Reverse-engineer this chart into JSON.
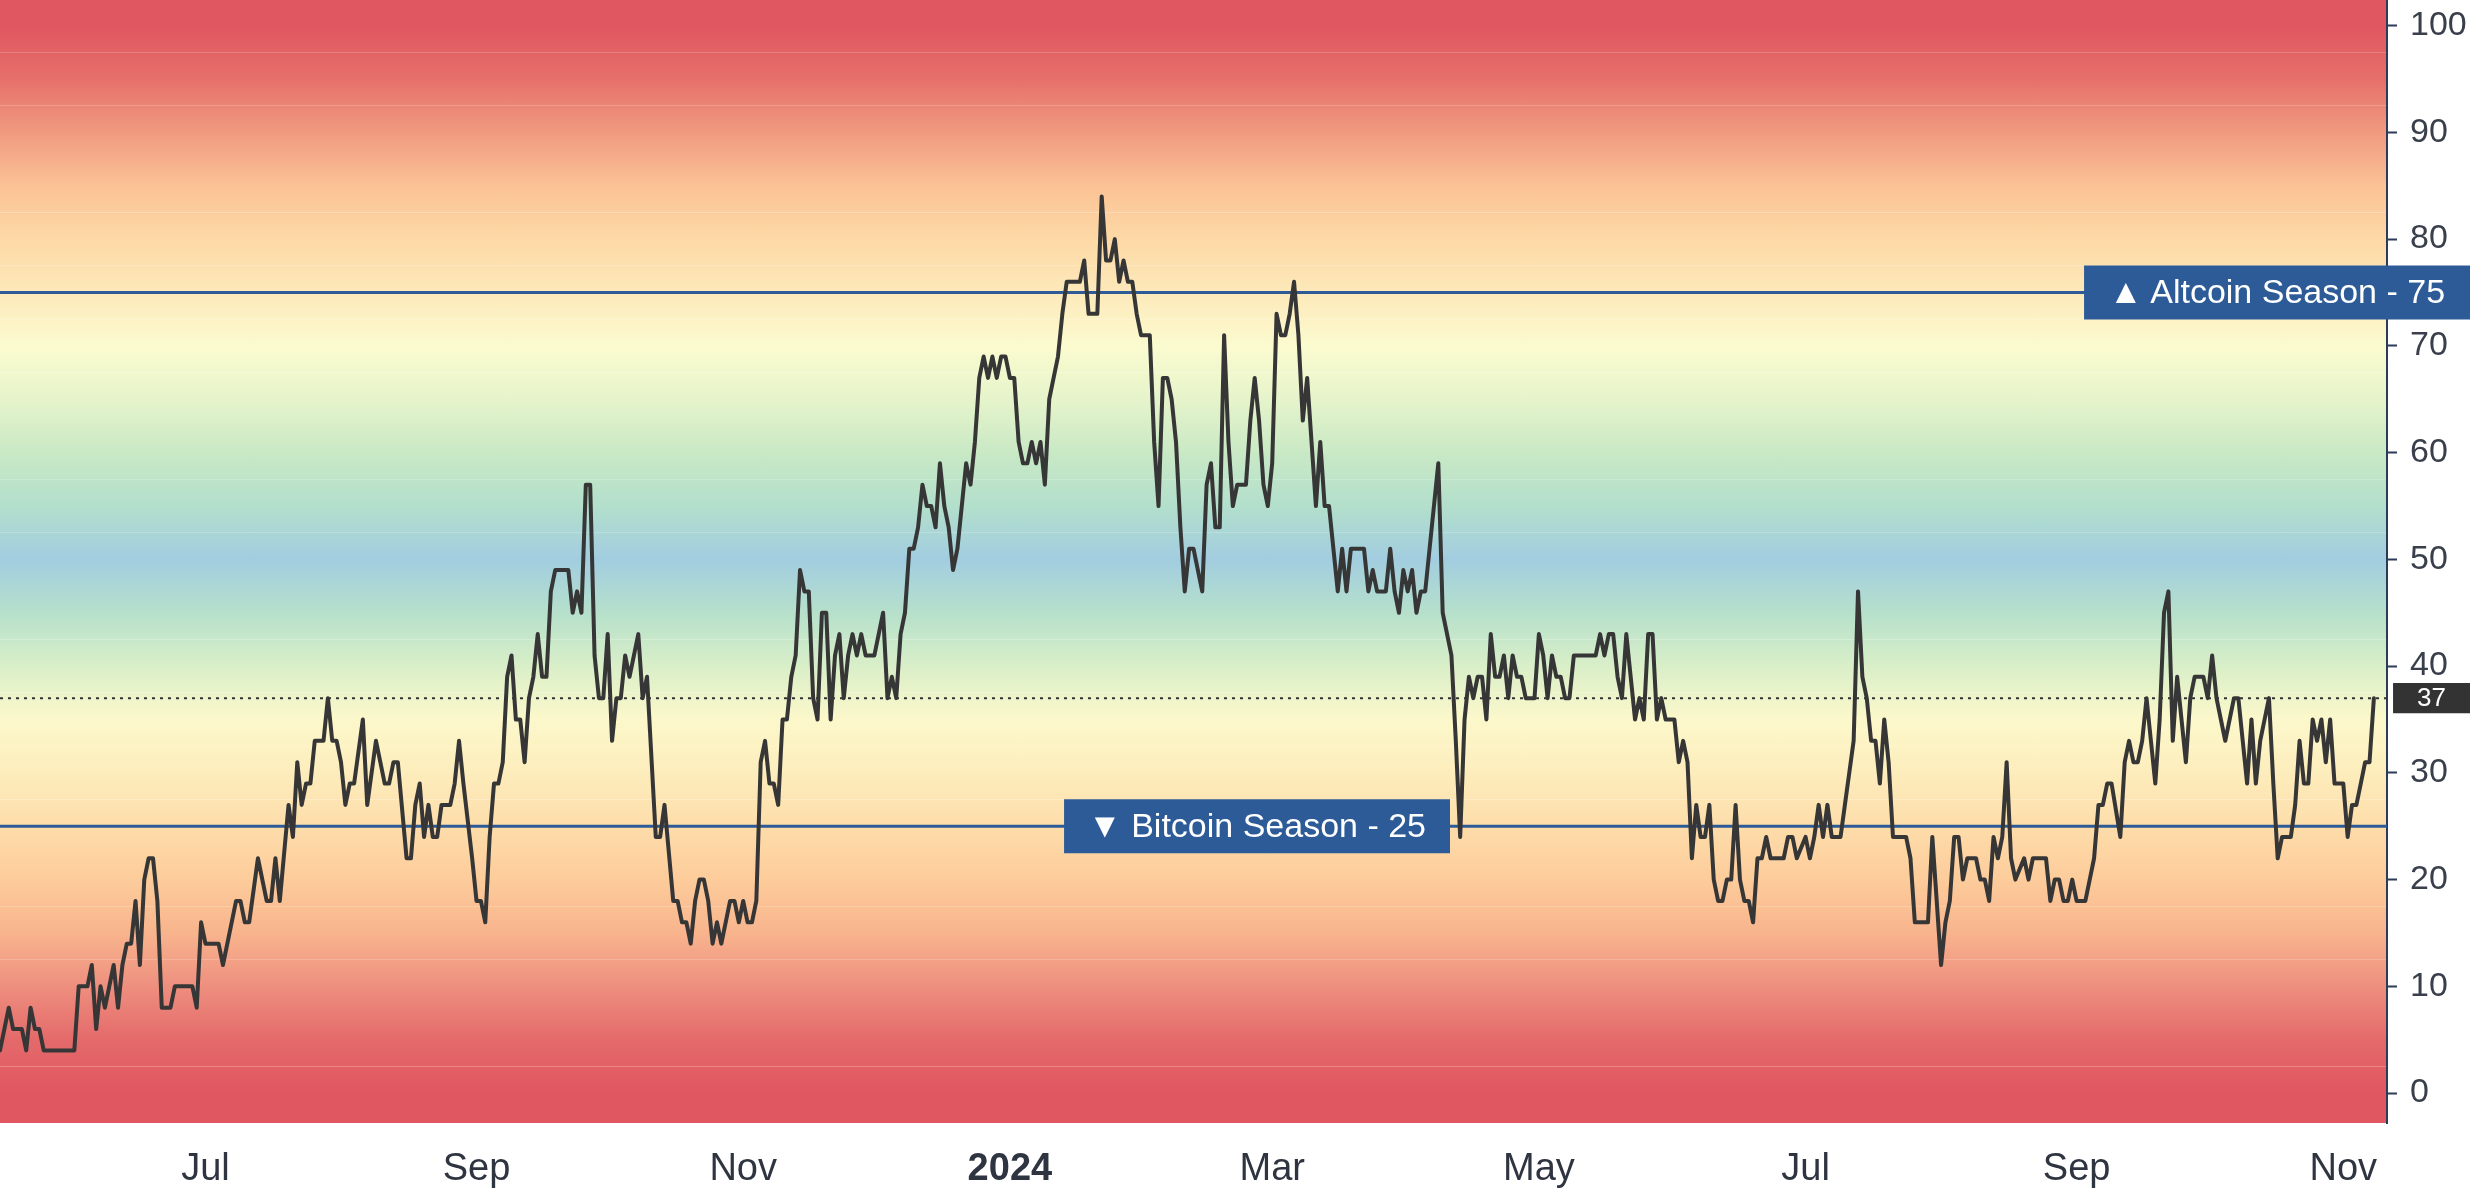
{
  "chart_data": {
    "type": "line",
    "x": [
      "2023-05-15",
      "2023-05-17",
      "2023-05-18",
      "2023-05-20",
      "2023-05-21",
      "2023-05-22",
      "2023-05-23",
      "2023-05-24",
      "2023-05-25",
      "2023-06-01",
      "2023-06-02",
      "2023-06-04",
      "2023-06-05",
      "2023-06-06",
      "2023-06-07",
      "2023-06-08",
      "2023-06-10",
      "2023-06-11",
      "2023-06-12",
      "2023-06-13",
      "2023-06-14",
      "2023-06-15",
      "2023-06-16",
      "2023-06-17",
      "2023-06-18",
      "2023-06-19",
      "2023-06-20",
      "2023-06-21",
      "2023-06-23",
      "2023-06-24",
      "2023-06-28",
      "2023-06-29",
      "2023-06-30",
      "2023-07-01",
      "2023-07-04",
      "2023-07-05",
      "2023-07-08",
      "2023-07-09",
      "2023-07-10",
      "2023-07-11",
      "2023-07-13",
      "2023-07-15",
      "2023-07-16",
      "2023-07-17",
      "2023-07-18",
      "2023-07-20",
      "2023-07-21",
      "2023-07-22",
      "2023-07-23",
      "2023-07-24",
      "2023-07-25",
      "2023-07-26",
      "2023-07-28",
      "2023-07-29",
      "2023-07-30",
      "2023-07-31",
      "2023-08-01",
      "2023-08-02",
      "2023-08-03",
      "2023-08-04",
      "2023-08-06",
      "2023-08-07",
      "2023-08-09",
      "2023-08-11",
      "2023-08-12",
      "2023-08-13",
      "2023-08-14",
      "2023-08-16",
      "2023-08-17",
      "2023-08-18",
      "2023-08-19",
      "2023-08-20",
      "2023-08-21",
      "2023-08-22",
      "2023-08-23",
      "2023-08-24",
      "2023-08-26",
      "2023-08-27",
      "2023-08-28",
      "2023-08-29",
      "2023-08-31",
      "2023-09-01",
      "2023-09-02",
      "2023-09-03",
      "2023-09-04",
      "2023-09-05",
      "2023-09-06",
      "2023-09-07",
      "2023-09-08",
      "2023-09-09",
      "2023-09-10",
      "2023-09-11",
      "2023-09-12",
      "2023-09-13",
      "2023-09-14",
      "2023-09-15",
      "2023-09-16",
      "2023-09-17",
      "2023-09-18",
      "2023-09-19",
      "2023-09-22",
      "2023-09-23",
      "2023-09-24",
      "2023-09-25",
      "2023-09-26",
      "2023-09-27",
      "2023-09-28",
      "2023-09-29",
      "2023-09-30",
      "2023-10-01",
      "2023-10-02",
      "2023-10-03",
      "2023-10-04",
      "2023-10-05",
      "2023-10-06",
      "2023-10-08",
      "2023-10-09",
      "2023-10-10",
      "2023-10-12",
      "2023-10-13",
      "2023-10-14",
      "2023-10-16",
      "2023-10-17",
      "2023-10-18",
      "2023-10-19",
      "2023-10-20",
      "2023-10-21",
      "2023-10-22",
      "2023-10-23",
      "2023-10-24",
      "2023-10-25",
      "2023-10-26",
      "2023-10-27",
      "2023-10-29",
      "2023-10-30",
      "2023-10-31",
      "2023-11-01",
      "2023-11-02",
      "2023-11-03",
      "2023-11-04",
      "2023-11-05",
      "2023-11-06",
      "2023-11-07",
      "2023-11-08",
      "2023-11-09",
      "2023-11-10",
      "2023-11-11",
      "2023-11-12",
      "2023-11-13",
      "2023-11-14",
      "2023-11-15",
      "2023-11-16",
      "2023-11-17",
      "2023-11-18",
      "2023-11-19",
      "2023-11-20",
      "2023-11-21",
      "2023-11-22",
      "2023-11-23",
      "2023-11-24",
      "2023-11-25",
      "2023-11-26",
      "2023-11-27",
      "2023-11-28",
      "2023-11-29",
      "2023-12-01",
      "2023-12-03",
      "2023-12-04",
      "2023-12-05",
      "2023-12-06",
      "2023-12-07",
      "2023-12-08",
      "2023-12-09",
      "2023-12-10",
      "2023-12-11",
      "2023-12-12",
      "2023-12-13",
      "2023-12-14",
      "2023-12-15",
      "2023-12-16",
      "2023-12-17",
      "2023-12-18",
      "2023-12-19",
      "2023-12-20",
      "2023-12-22",
      "2023-12-23",
      "2023-12-24",
      "2023-12-25",
      "2023-12-26",
      "2023-12-27",
      "2023-12-28",
      "2023-12-29",
      "2023-12-30",
      "2023-12-31",
      "2024-01-01",
      "2024-01-02",
      "2024-01-03",
      "2024-01-04",
      "2024-01-05",
      "2024-01-06",
      "2024-01-07",
      "2024-01-08",
      "2024-01-09",
      "2024-01-10",
      "2024-01-11",
      "2024-01-12",
      "2024-01-13",
      "2024-01-14",
      "2024-01-17",
      "2024-01-18",
      "2024-01-19",
      "2024-01-21",
      "2024-01-22",
      "2024-01-23",
      "2024-01-24",
      "2024-01-25",
      "2024-01-26",
      "2024-01-27",
      "2024-01-28",
      "2024-01-29",
      "2024-01-30",
      "2024-01-31",
      "2024-02-02",
      "2024-02-03",
      "2024-02-04",
      "2024-02-05",
      "2024-02-06",
      "2024-02-07",
      "2024-02-08",
      "2024-02-09",
      "2024-02-10",
      "2024-02-11",
      "2024-02-12",
      "2024-02-13",
      "2024-02-14",
      "2024-02-15",
      "2024-02-16",
      "2024-02-17",
      "2024-02-18",
      "2024-02-19",
      "2024-02-20",
      "2024-02-21",
      "2024-02-22",
      "2024-02-24",
      "2024-02-25",
      "2024-02-26",
      "2024-02-27",
      "2024-02-28",
      "2024-02-29",
      "2024-03-01",
      "2024-03-02",
      "2024-03-03",
      "2024-03-04",
      "2024-03-05",
      "2024-03-06",
      "2024-03-07",
      "2024-03-08",
      "2024-03-09",
      "2024-03-10",
      "2024-03-11",
      "2024-03-12",
      "2024-03-13",
      "2024-03-14",
      "2024-03-15",
      "2024-03-16",
      "2024-03-17",
      "2024-03-18",
      "2024-03-19",
      "2024-03-22",
      "2024-03-23",
      "2024-03-24",
      "2024-03-25",
      "2024-03-27",
      "2024-03-28",
      "2024-03-29",
      "2024-03-30",
      "2024-03-31",
      "2024-04-01",
      "2024-04-02",
      "2024-04-03",
      "2024-04-04",
      "2024-04-05",
      "2024-04-07",
      "2024-04-08",
      "2024-04-09",
      "2024-04-11",
      "2024-04-12",
      "2024-04-13",
      "2024-04-14",
      "2024-04-15",
      "2024-04-16",
      "2024-04-17",
      "2024-04-18",
      "2024-04-19",
      "2024-04-20",
      "2024-04-21",
      "2024-04-22",
      "2024-04-23",
      "2024-04-24",
      "2024-04-25",
      "2024-04-26",
      "2024-04-27",
      "2024-04-28",
      "2024-04-30",
      "2024-05-01",
      "2024-05-02",
      "2024-05-03",
      "2024-05-04",
      "2024-05-05",
      "2024-05-06",
      "2024-05-07",
      "2024-05-08",
      "2024-05-09",
      "2024-05-14",
      "2024-05-15",
      "2024-05-16",
      "2024-05-17",
      "2024-05-18",
      "2024-05-19",
      "2024-05-20",
      "2024-05-21",
      "2024-05-22",
      "2024-05-23",
      "2024-05-24",
      "2024-05-25",
      "2024-05-26",
      "2024-05-27",
      "2024-05-28",
      "2024-05-29",
      "2024-05-30",
      "2024-06-01",
      "2024-06-02",
      "2024-06-03",
      "2024-06-04",
      "2024-06-05",
      "2024-06-06",
      "2024-06-07",
      "2024-06-08",
      "2024-06-09",
      "2024-06-10",
      "2024-06-11",
      "2024-06-12",
      "2024-06-13",
      "2024-06-14",
      "2024-06-15",
      "2024-06-16",
      "2024-06-17",
      "2024-06-18",
      "2024-06-19",
      "2024-06-20",
      "2024-06-21",
      "2024-06-22",
      "2024-06-23",
      "2024-06-26",
      "2024-06-27",
      "2024-06-28",
      "2024-06-29",
      "2024-07-01",
      "2024-07-02",
      "2024-07-03",
      "2024-07-04",
      "2024-07-05",
      "2024-07-06",
      "2024-07-07",
      "2024-07-09",
      "2024-07-10",
      "2024-07-12",
      "2024-07-13",
      "2024-07-14",
      "2024-07-15",
      "2024-07-16",
      "2024-07-17",
      "2024-07-18",
      "2024-07-19",
      "2024-07-20",
      "2024-07-21",
      "2024-07-24",
      "2024-07-25",
      "2024-07-26",
      "2024-07-29",
      "2024-07-30",
      "2024-08-01",
      "2024-08-02",
      "2024-08-03",
      "2024-08-04",
      "2024-08-05",
      "2024-08-06",
      "2024-08-07",
      "2024-08-09",
      "2024-08-10",
      "2024-08-11",
      "2024-08-12",
      "2024-08-13",
      "2024-08-14",
      "2024-08-15",
      "2024-08-16",
      "2024-08-17",
      "2024-08-18",
      "2024-08-20",
      "2024-08-21",
      "2024-08-22",
      "2024-08-25",
      "2024-08-26",
      "2024-08-27",
      "2024-08-28",
      "2024-08-29",
      "2024-08-30",
      "2024-08-31",
      "2024-09-01",
      "2024-09-03",
      "2024-09-04",
      "2024-09-05",
      "2024-09-06",
      "2024-09-07",
      "2024-09-08",
      "2024-09-09",
      "2024-09-11",
      "2024-09-12",
      "2024-09-13",
      "2024-09-14",
      "2024-09-15",
      "2024-09-16",
      "2024-09-17",
      "2024-09-18",
      "2024-09-19",
      "2024-09-20",
      "2024-09-21",
      "2024-09-22",
      "2024-09-23",
      "2024-09-24",
      "2024-09-25",
      "2024-09-26",
      "2024-09-27",
      "2024-09-28",
      "2024-09-30",
      "2024-10-01",
      "2024-10-02",
      "2024-10-03",
      "2024-10-04",
      "2024-10-05",
      "2024-10-06",
      "2024-10-07",
      "2024-10-08",
      "2024-10-09",
      "2024-10-10",
      "2024-10-11",
      "2024-10-12",
      "2024-10-13",
      "2024-10-15",
      "2024-10-16",
      "2024-10-17",
      "2024-10-18",
      "2024-10-20",
      "2024-10-21",
      "2024-10-22",
      "2024-10-23",
      "2024-10-24",
      "2024-10-25",
      "2024-10-26",
      "2024-10-27",
      "2024-10-28",
      "2024-10-29",
      "2024-10-30",
      "2024-11-01",
      "2024-11-02",
      "2024-11-03",
      "2024-11-04",
      "2024-11-05",
      "2024-11-06",
      "2024-11-07",
      "2024-11-08"
    ],
    "series": [
      {
        "color": "#363636",
        "values": [
          4,
          8,
          6,
          6,
          4,
          8,
          6,
          6,
          4,
          4,
          10,
          10,
          12,
          6,
          10,
          8,
          12,
          8,
          12,
          14,
          14,
          18,
          12,
          20,
          22,
          22,
          18,
          8,
          8,
          10,
          10,
          8,
          16,
          14,
          14,
          12,
          18,
          18,
          16,
          16,
          22,
          18,
          18,
          22,
          18,
          27,
          24,
          31,
          27,
          29,
          29,
          33,
          33,
          37,
          33,
          33,
          31,
          27,
          29,
          29,
          35,
          27,
          33,
          29,
          29,
          31,
          31,
          22,
          22,
          27,
          29,
          24,
          27,
          24,
          24,
          27,
          27,
          29,
          33,
          29,
          22,
          18,
          18,
          16,
          24,
          29,
          29,
          31,
          39,
          41,
          35,
          35,
          31,
          37,
          39,
          43,
          39,
          39,
          47,
          49,
          49,
          45,
          47,
          45,
          57,
          57,
          41,
          37,
          37,
          43,
          33,
          37,
          37,
          41,
          39,
          43,
          37,
          39,
          24,
          24,
          27,
          18,
          18,
          16,
          16,
          14,
          18,
          20,
          20,
          18,
          14,
          16,
          14,
          18,
          18,
          16,
          18,
          16,
          16,
          18,
          31,
          33,
          29,
          29,
          27,
          35,
          35,
          39,
          41,
          49,
          47,
          47,
          37,
          35,
          45,
          45,
          35,
          41,
          43,
          37,
          41,
          43,
          41,
          43,
          41,
          41,
          45,
          37,
          39,
          37,
          43,
          45,
          51,
          51,
          53,
          57,
          55,
          55,
          53,
          59,
          55,
          53,
          49,
          51,
          59,
          57,
          61,
          67,
          69,
          67,
          69,
          67,
          69,
          69,
          67,
          67,
          61,
          59,
          59,
          61,
          59,
          61,
          57,
          65,
          67,
          69,
          73,
          76,
          76,
          78,
          73,
          73,
          84,
          78,
          78,
          80,
          76,
          78,
          76,
          76,
          73,
          71,
          71,
          61,
          55,
          67,
          67,
          65,
          61,
          53,
          47,
          51,
          51,
          49,
          47,
          57,
          59,
          53,
          53,
          71,
          61,
          55,
          57,
          57,
          63,
          67,
          63,
          57,
          55,
          59,
          73,
          71,
          71,
          73,
          76,
          71,
          63,
          67,
          61,
          55,
          61,
          55,
          55,
          51,
          47,
          51,
          47,
          51,
          51,
          47,
          49,
          47,
          47,
          51,
          47,
          45,
          49,
          47,
          49,
          45,
          47,
          47,
          55,
          59,
          45,
          41,
          33,
          24,
          35,
          39,
          37,
          39,
          39,
          35,
          43,
          39,
          39,
          41,
          37,
          41,
          39,
          39,
          37,
          37,
          43,
          41,
          37,
          41,
          39,
          39,
          37,
          37,
          41,
          41,
          43,
          41,
          43,
          43,
          39,
          37,
          43,
          39,
          35,
          37,
          35,
          43,
          43,
          35,
          37,
          35,
          35,
          31,
          33,
          31,
          22,
          27,
          24,
          24,
          27,
          20,
          18,
          18,
          20,
          20,
          27,
          20,
          18,
          18,
          16,
          22,
          22,
          24,
          22,
          22,
          24,
          24,
          22,
          24,
          22,
          24,
          27,
          24,
          27,
          24,
          24,
          27,
          33,
          47,
          39,
          37,
          33,
          33,
          29,
          35,
          31,
          24,
          24,
          22,
          16,
          16,
          24,
          12,
          16,
          18,
          24,
          24,
          20,
          22,
          22,
          20,
          20,
          18,
          24,
          22,
          24,
          31,
          22,
          20,
          22,
          20,
          22,
          22,
          18,
          20,
          20,
          18,
          18,
          20,
          18,
          18,
          20,
          22,
          27,
          27,
          29,
          29,
          24,
          31,
          33,
          31,
          31,
          33,
          37,
          33,
          29,
          35,
          45,
          47,
          33,
          39,
          35,
          31,
          37,
          39,
          39,
          37,
          41,
          37,
          35,
          33,
          35,
          37,
          37,
          33,
          29,
          35,
          29,
          33,
          37,
          29,
          22,
          24,
          24,
          27,
          33,
          29,
          29,
          35,
          33,
          35,
          31,
          35,
          29,
          29,
          24,
          27,
          27,
          29,
          31,
          31,
          37
        ]
      }
    ],
    "xlim": [
      "2023-05-15",
      "2024-11-11"
    ],
    "xticks": [
      {
        "value": "2023-07-01",
        "label": "Jul"
      },
      {
        "value": "2023-09-01",
        "label": "Sep"
      },
      {
        "value": "2023-11-01",
        "label": "Nov"
      },
      {
        "value": "2024-01-01",
        "label": "2024"
      },
      {
        "value": "2024-03-01",
        "label": "Mar"
      },
      {
        "value": "2024-05-01",
        "label": "May"
      },
      {
        "value": "2024-07-01",
        "label": "Jul"
      },
      {
        "value": "2024-09-01",
        "label": "Sep"
      },
      {
        "value": "2024-11-01",
        "label": "Nov"
      }
    ],
    "ylim": [
      -2.8,
      102.4
    ],
    "yticks": [
      0,
      10,
      20,
      30,
      40,
      50,
      60,
      70,
      80,
      90,
      100
    ],
    "ref_lines": [
      {
        "axis": "y",
        "value": 75,
        "label": "▲ Altcoin Season - 75",
        "color": "#2d5b97",
        "line_style": "solid"
      },
      {
        "axis": "y",
        "value": 25,
        "label": "▼ Bitcoin Season - 25",
        "color": "#2d5b97",
        "line_style": "solid"
      },
      {
        "axis": "y",
        "value": 37,
        "label": "37",
        "color": "#333333",
        "line_style": "dotted"
      }
    ],
    "bands": [
      {
        "axis": "y",
        "from": -2.8,
        "to": 2.5,
        "color": "#e05661"
      },
      {
        "axis": "y",
        "from": 2.5,
        "to": 7.5,
        "color": "#e46a6a"
      },
      {
        "axis": "y",
        "from": 7.5,
        "to": 12.5,
        "color": "#ee8f7f"
      },
      {
        "axis": "y",
        "from": 12.5,
        "to": 17.5,
        "color": "#f8b48d"
      },
      {
        "axis": "y",
        "from": 17.5,
        "to": 22.5,
        "color": "#fdcc9b"
      },
      {
        "axis": "y",
        "from": 22.5,
        "to": 27.5,
        "color": "#fdddaa"
      },
      {
        "axis": "y",
        "from": 27.5,
        "to": 32.5,
        "color": "#fdedbc"
      },
      {
        "axis": "y",
        "from": 32.5,
        "to": 37.5,
        "color": "#fcf8cb"
      },
      {
        "axis": "y",
        "from": 37.5,
        "to": 42.5,
        "color": "#d9efc8"
      },
      {
        "axis": "y",
        "from": 42.5,
        "to": 47.5,
        "color": "#b6e0cb"
      },
      {
        "axis": "y",
        "from": 47.5,
        "to": 52.5,
        "color": "#a2cde0"
      },
      {
        "axis": "y",
        "from": 52.5,
        "to": 57.5,
        "color": "#b3dfcc"
      },
      {
        "axis": "y",
        "from": 57.5,
        "to": 62.5,
        "color": "#c9e9c5"
      },
      {
        "axis": "y",
        "from": 62.5,
        "to": 67.5,
        "color": "#e6f4cb"
      },
      {
        "axis": "y",
        "from": 67.5,
        "to": 72.5,
        "color": "#fbfbcf"
      },
      {
        "axis": "y",
        "from": 72.5,
        "to": 77.5,
        "color": "#fde9ba"
      },
      {
        "axis": "y",
        "from": 77.5,
        "to": 82.5,
        "color": "#fdd9a6"
      },
      {
        "axis": "y",
        "from": 82.5,
        "to": 87.5,
        "color": "#fbc295"
      },
      {
        "axis": "y",
        "from": 87.5,
        "to": 92.5,
        "color": "#f09a80"
      },
      {
        "axis": "y",
        "from": 92.5,
        "to": 97.5,
        "color": "#e6706a"
      },
      {
        "axis": "y",
        "from": 97.5,
        "to": 102.4,
        "color": "#e05661"
      }
    ]
  }
}
